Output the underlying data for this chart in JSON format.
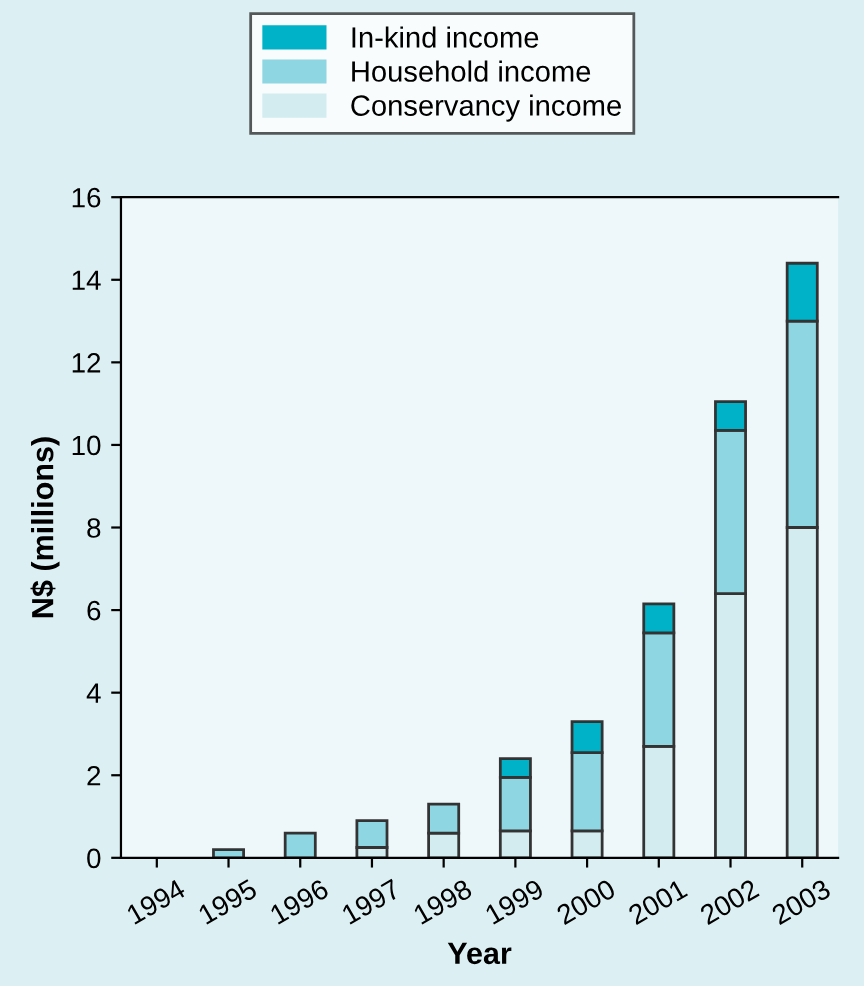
{
  "chart_data": {
    "type": "bar",
    "stacked": true,
    "xlabel": "Year",
    "ylabel": "N$ (millions)",
    "categories": [
      "1994",
      "1995",
      "1996",
      "1997",
      "1998",
      "1999",
      "2000",
      "2001",
      "2002",
      "2003"
    ],
    "series": [
      {
        "name": "Conservancy income",
        "color": "#d2ecf0",
        "values": [
          0,
          0,
          0,
          0.25,
          0.6,
          0.65,
          0.65,
          2.7,
          6.4,
          8.0
        ]
      },
      {
        "name": "Household income",
        "color": "#8ed6e2",
        "values": [
          0,
          0.2,
          0.6,
          0.65,
          0.7,
          1.3,
          1.9,
          2.75,
          3.95,
          5.0
        ]
      },
      {
        "name": "In-kind income",
        "color": "#00b2c8",
        "values": [
          0,
          0,
          0,
          0,
          0,
          0.45,
          0.75,
          0.7,
          0.7,
          1.4
        ]
      }
    ],
    "ylim": [
      0,
      16
    ],
    "yticks": [
      0,
      2,
      4,
      6,
      8,
      10,
      12,
      14,
      16
    ],
    "grid": false,
    "legend": "top left"
  }
}
